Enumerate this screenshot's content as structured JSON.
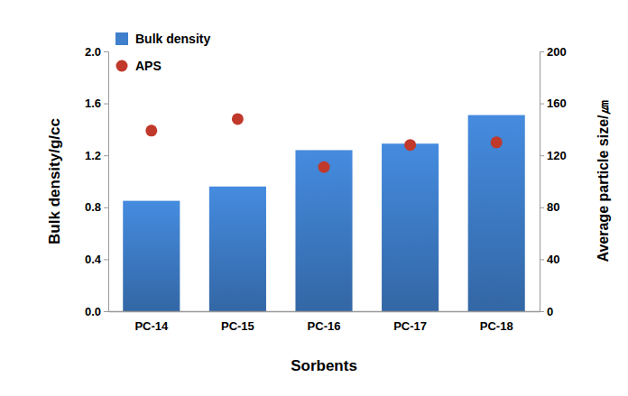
{
  "chart_data": {
    "type": "bar",
    "xlabel": "Sorbents",
    "ylabel": "Bulk density/g/cc",
    "y2label": "Average particle size/㎛",
    "categories": [
      "PC-14",
      "PC-15",
      "PC-16",
      "PC-17",
      "PC-18"
    ],
    "series": [
      {
        "name": "Bulk density",
        "type": "bar",
        "color": "#3f7fcc",
        "values": [
          0.85,
          0.96,
          1.24,
          1.29,
          1.51
        ]
      },
      {
        "name": "APS",
        "type": "scatter",
        "axis": "y2",
        "color": "#c0392b",
        "marker": "circle",
        "values": [
          139,
          148,
          111,
          128,
          130
        ]
      }
    ],
    "ylim": [
      0,
      2
    ],
    "yticks": [
      {
        "value": 0,
        "label": "0.0"
      },
      0.4,
      0.8,
      1.2,
      1.6,
      {
        "value": 2,
        "label": "2.0"
      }
    ],
    "y2lim": [
      0,
      200
    ],
    "y2ticks": [
      0,
      40,
      80,
      120,
      160,
      200
    ],
    "legend": "upper left",
    "grid": false
  }
}
